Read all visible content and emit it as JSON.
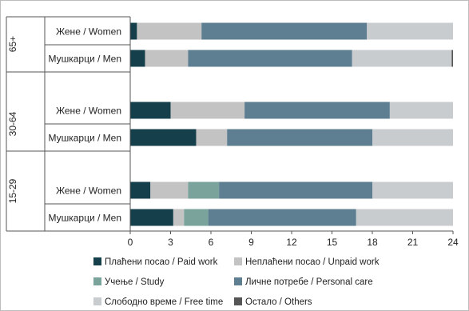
{
  "chart_data": {
    "type": "bar",
    "orientation": "horizontal",
    "stacked": true,
    "xlim": [
      0,
      24
    ],
    "xticks": [
      "0",
      "3",
      "6",
      "9",
      "12",
      "15",
      "18",
      "21",
      "24"
    ],
    "groups": [
      {
        "label": "65+",
        "rows": [
          "Жене / Women",
          "Мушкарци / Men"
        ]
      },
      {
        "label": "30-64",
        "rows": [
          "Жене / Women",
          "Мушкарци / Men"
        ]
      },
      {
        "label": "15-29",
        "rows": [
          "Жене / Women",
          "Мушкарци / Men"
        ]
      }
    ],
    "series": [
      {
        "name": "Плаћени посао / Paid work",
        "color": "#163f4c",
        "values": [
          0.5,
          1.1,
          3.0,
          4.9,
          1.5,
          3.2
        ]
      },
      {
        "name": "Неплаћени посао / Unpaid work",
        "color": "#c3c3c3",
        "values": [
          4.8,
          3.2,
          5.5,
          2.3,
          2.8,
          0.8
        ]
      },
      {
        "name": "Учење / Study",
        "color": "#7aa39c",
        "values": [
          0.0,
          0.0,
          0.0,
          0.0,
          2.3,
          1.8
        ]
      },
      {
        "name": "Личне потребе / Personal care",
        "color": "#5e7f91",
        "values": [
          12.3,
          12.2,
          10.8,
          10.8,
          11.4,
          11.0
        ]
      },
      {
        "name": "Слободно време / Free time",
        "color": "#c9cccf",
        "values": [
          6.4,
          7.4,
          4.7,
          6.0,
          6.0,
          7.2
        ]
      },
      {
        "name": "Остало / Others",
        "color": "#555555",
        "values": [
          0.0,
          0.1,
          0.0,
          0.0,
          0.0,
          0.0
        ]
      }
    ],
    "legend_position": "bottom",
    "grid": false
  }
}
